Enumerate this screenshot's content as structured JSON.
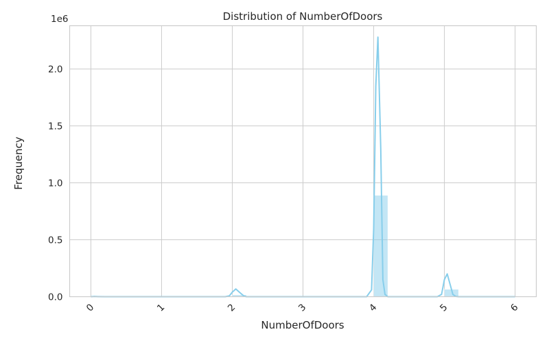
{
  "chart_data": {
    "type": "bar",
    "title": "Distribution of NumberOfDoors",
    "xlabel": "NumberOfDoors",
    "ylabel": "Frequency",
    "y_scale_label": "1e6",
    "xlim": [
      -0.3,
      6.3
    ],
    "ylim": [
      0,
      2380000
    ],
    "x_ticks": [
      0,
      1,
      2,
      3,
      4,
      5,
      6
    ],
    "x_tick_labels": [
      "0",
      "1",
      "2",
      "3",
      "4",
      "5",
      "6"
    ],
    "y_ticks": [
      0,
      500000,
      1000000,
      1500000,
      2000000
    ],
    "y_tick_labels": [
      "0.0",
      "0.5",
      "1.0",
      "1.5",
      "2.0"
    ],
    "grid": true,
    "bar_color": "#87ceeb",
    "line_color": "#87ceeb",
    "bins": [
      {
        "x0": 0.0,
        "x1": 0.2,
        "value": 1000
      },
      {
        "x0": 2.0,
        "x1": 2.2,
        "value": 16000
      },
      {
        "x0": 4.0,
        "x1": 4.2,
        "value": 890000
      },
      {
        "x0": 5.0,
        "x1": 5.2,
        "value": 65000
      }
    ],
    "kde": {
      "x": [
        0,
        0.05,
        0.1,
        0.2,
        1.9,
        1.96,
        2.0,
        2.05,
        2.1,
        2.16,
        2.2,
        3.9,
        3.97,
        4.0,
        4.03,
        4.06,
        4.1,
        4.13,
        4.16,
        4.2,
        4.3,
        4.9,
        4.96,
        5.0,
        5.04,
        5.08,
        5.12,
        5.16,
        5.2,
        5.3,
        6.0
      ],
      "y": [
        0,
        2000,
        1000,
        0,
        0,
        8000,
        40000,
        68000,
        40000,
        8000,
        0,
        0,
        60000,
        600000,
        1850000,
        2280000,
        1300000,
        150000,
        20000,
        0,
        0,
        0,
        20000,
        150000,
        200000,
        110000,
        20000,
        3000,
        0,
        0,
        0
      ]
    }
  }
}
